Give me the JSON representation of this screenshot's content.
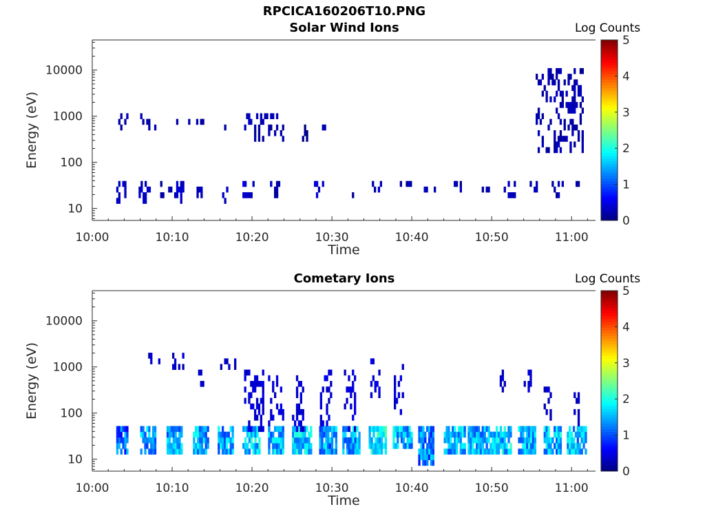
{
  "figure": {
    "filename": "RPCICA160206T10.PNG"
  },
  "colorbar": {
    "label": "Log Counts",
    "ticks": [
      "0",
      "1",
      "2",
      "3",
      "4",
      "5"
    ],
    "range": [
      0,
      5
    ]
  },
  "chart_data": [
    {
      "type": "heatmap",
      "title": "Solar Wind Ions",
      "xlabel": "Time",
      "ylabel": "Energy (eV)",
      "x_ticks": [
        "10:00",
        "10:10",
        "10:20",
        "10:30",
        "10:40",
        "10:50",
        "11:00"
      ],
      "x_tick_minutes": [
        0,
        10,
        20,
        30,
        40,
        50,
        60
      ],
      "xlim_minutes": [
        0,
        63
      ],
      "y_scale": "log",
      "y_ticks": [
        "10",
        "100",
        "1000",
        "10000"
      ],
      "y_tick_values": [
        10,
        100,
        1000,
        10000
      ],
      "ylim": [
        5.5,
        45000
      ],
      "colorbar_label": "Log Counts",
      "z_range": [
        0,
        5
      ],
      "clusters": [
        {
          "t": [
            3,
            4.2
          ],
          "e": [
            13,
            30
          ],
          "z": 0.3
        },
        {
          "t": [
            3,
            4.5
          ],
          "e": [
            400,
            950
          ],
          "z": 0.2
        },
        {
          "t": [
            5.8,
            7.3
          ],
          "e": [
            13,
            30
          ],
          "z": 0.3
        },
        {
          "t": [
            6,
            8
          ],
          "e": [
            450,
            900
          ],
          "z": 0.2
        },
        {
          "t": [
            8.5,
            10
          ],
          "e": [
            14,
            30
          ],
          "z": 0.2
        },
        {
          "t": [
            9.5,
            11
          ],
          "e": [
            550,
            850
          ],
          "z": 0.2
        },
        {
          "t": [
            10,
            11.3
          ],
          "e": [
            13,
            30
          ],
          "z": 0.3
        },
        {
          "t": [
            12.8,
            14
          ],
          "e": [
            14,
            28
          ],
          "z": 0.3
        },
        {
          "t": [
            12,
            14
          ],
          "e": [
            550,
            800
          ],
          "z": 0.2
        },
        {
          "t": [
            15.5,
            16.8
          ],
          "e": [
            13,
            28
          ],
          "z": 0.3
        },
        {
          "t": [
            16,
            17.5
          ],
          "e": [
            400,
            700
          ],
          "z": 0.2
        },
        {
          "t": [
            18.8,
            20.3
          ],
          "e": [
            14,
            30
          ],
          "z": 0.3
        },
        {
          "t": [
            19,
            24
          ],
          "e": [
            250,
            900
          ],
          "z": 0.2
        },
        {
          "t": [
            21.5,
            23.3
          ],
          "e": [
            14,
            30
          ],
          "z": 0.2
        },
        {
          "t": [
            26,
            27
          ],
          "e": [
            250,
            600
          ],
          "z": 0.1
        },
        {
          "t": [
            27.5,
            29
          ],
          "e": [
            14,
            30
          ],
          "z": 0.3
        },
        {
          "t": [
            28,
            29.5
          ],
          "e": [
            450,
            800
          ],
          "z": 0.2
        },
        {
          "t": [
            32,
            33
          ],
          "e": [
            12,
            22
          ],
          "z": 0.2
        },
        {
          "t": [
            35,
            36.3
          ],
          "e": [
            18,
            30
          ],
          "z": 0.2
        },
        {
          "t": [
            38.5,
            40
          ],
          "e": [
            18,
            30
          ],
          "z": 0.2
        },
        {
          "t": [
            41.5,
            43
          ],
          "e": [
            18,
            30
          ],
          "z": 0.2
        },
        {
          "t": [
            45,
            47
          ],
          "e": [
            18,
            35
          ],
          "z": 0.2
        },
        {
          "t": [
            48.5,
            50
          ],
          "e": [
            18,
            30
          ],
          "z": 0.2
        },
        {
          "t": [
            51.5,
            53
          ],
          "e": [
            14,
            30
          ],
          "z": 0.2
        },
        {
          "t": [
            54.5,
            56
          ],
          "e": [
            18,
            30
          ],
          "z": 0.2
        },
        {
          "t": [
            57.5,
            59
          ],
          "e": [
            14,
            30
          ],
          "z": 0.2
        },
        {
          "t": [
            55.5,
            61.5
          ],
          "e": [
            150,
            9000
          ],
          "z": 0.2
        },
        {
          "t": [
            60.5,
            62
          ],
          "e": [
            18,
            30
          ],
          "z": 0.2
        }
      ]
    },
    {
      "type": "heatmap",
      "title": "Cometary Ions",
      "xlabel": "Time",
      "ylabel": "Energy (eV)",
      "x_ticks": [
        "10:00",
        "10:10",
        "10:20",
        "10:30",
        "10:40",
        "10:50",
        "11:00"
      ],
      "x_tick_minutes": [
        0,
        10,
        20,
        30,
        40,
        50,
        60
      ],
      "xlim_minutes": [
        0,
        63
      ],
      "y_scale": "log",
      "y_ticks": [
        "10",
        "100",
        "1000",
        "10000"
      ],
      "y_tick_values": [
        10,
        100,
        1000,
        10000
      ],
      "ylim": [
        5.5,
        45000
      ],
      "colorbar_label": "Log Counts",
      "z_range": [
        0,
        5
      ],
      "clusters": [
        {
          "t": [
            3,
            4.5
          ],
          "e": [
            12,
            50
          ],
          "z": 1.0
        },
        {
          "t": [
            6,
            8
          ],
          "e": [
            12,
            45
          ],
          "z": 1.3
        },
        {
          "t": [
            7,
            8.5
          ],
          "e": [
            900,
            2000
          ],
          "z": 0.3
        },
        {
          "t": [
            9.3,
            11.3
          ],
          "e": [
            12,
            45
          ],
          "z": 1.3
        },
        {
          "t": [
            10,
            11.5
          ],
          "e": [
            800,
            1800
          ],
          "z": 0.3
        },
        {
          "t": [
            12.6,
            14.6
          ],
          "e": [
            12,
            45
          ],
          "z": 1.4
        },
        {
          "t": [
            13,
            14
          ],
          "e": [
            300,
            700
          ],
          "z": 0.3
        },
        {
          "t": [
            15.7,
            17.7
          ],
          "e": [
            12,
            45
          ],
          "z": 1.3
        },
        {
          "t": [
            16,
            18
          ],
          "e": [
            700,
            1500
          ],
          "z": 0.3
        },
        {
          "t": [
            18.8,
            21
          ],
          "e": [
            12,
            45
          ],
          "z": 1.5
        },
        {
          "t": [
            19,
            21.5
          ],
          "e": [
            40,
            700
          ],
          "z": 0.4
        },
        {
          "t": [
            22,
            24
          ],
          "e": [
            12,
            45
          ],
          "z": 1.4
        },
        {
          "t": [
            22,
            24
          ],
          "e": [
            50,
            500
          ],
          "z": 0.4
        },
        {
          "t": [
            25,
            27.3
          ],
          "e": [
            12,
            45
          ],
          "z": 1.5
        },
        {
          "t": [
            25,
            26.5
          ],
          "e": [
            40,
            600
          ],
          "z": 0.4
        },
        {
          "t": [
            28.4,
            30.5
          ],
          "e": [
            12,
            45
          ],
          "z": 1.3
        },
        {
          "t": [
            28.5,
            30
          ],
          "e": [
            50,
            800
          ],
          "z": 0.4
        },
        {
          "t": [
            31.3,
            33.5
          ],
          "e": [
            12,
            45
          ],
          "z": 1.3
        },
        {
          "t": [
            31.5,
            33
          ],
          "e": [
            40,
            700
          ],
          "z": 0.4
        },
        {
          "t": [
            34.6,
            36.8
          ],
          "e": [
            12,
            45
          ],
          "z": 1.7
        },
        {
          "t": [
            34.8,
            36
          ],
          "e": [
            200,
            1200
          ],
          "z": 0.4
        },
        {
          "t": [
            37.6,
            40
          ],
          "e": [
            14,
            40
          ],
          "z": 1.4
        },
        {
          "t": [
            37.5,
            39
          ],
          "e": [
            80,
            900
          ],
          "z": 0.4
        },
        {
          "t": [
            40.8,
            42.8
          ],
          "e": [
            7,
            40
          ],
          "z": 1.1
        },
        {
          "t": [
            44,
            46.6
          ],
          "e": [
            12,
            40
          ],
          "z": 1.4
        },
        {
          "t": [
            47,
            49.8
          ],
          "e": [
            12,
            40
          ],
          "z": 1.4
        },
        {
          "t": [
            50,
            52.5
          ],
          "e": [
            12,
            40
          ],
          "z": 1.5
        },
        {
          "t": [
            51,
            52
          ],
          "e": [
            150,
            800
          ],
          "z": 0.3
        },
        {
          "t": [
            53.3,
            55.5
          ],
          "e": [
            12,
            40
          ],
          "z": 1.4
        },
        {
          "t": [
            54,
            55
          ],
          "e": [
            200,
            800
          ],
          "z": 0.3
        },
        {
          "t": [
            56.5,
            58.7
          ],
          "e": [
            12,
            40
          ],
          "z": 1.4
        },
        {
          "t": [
            56.5,
            57.5
          ],
          "e": [
            60,
            300
          ],
          "z": 0.3
        },
        {
          "t": [
            59.4,
            61.8
          ],
          "e": [
            12,
            40
          ],
          "z": 1.4
        },
        {
          "t": [
            59.5,
            61
          ],
          "e": [
            50,
            250
          ],
          "z": 0.3
        }
      ]
    }
  ]
}
